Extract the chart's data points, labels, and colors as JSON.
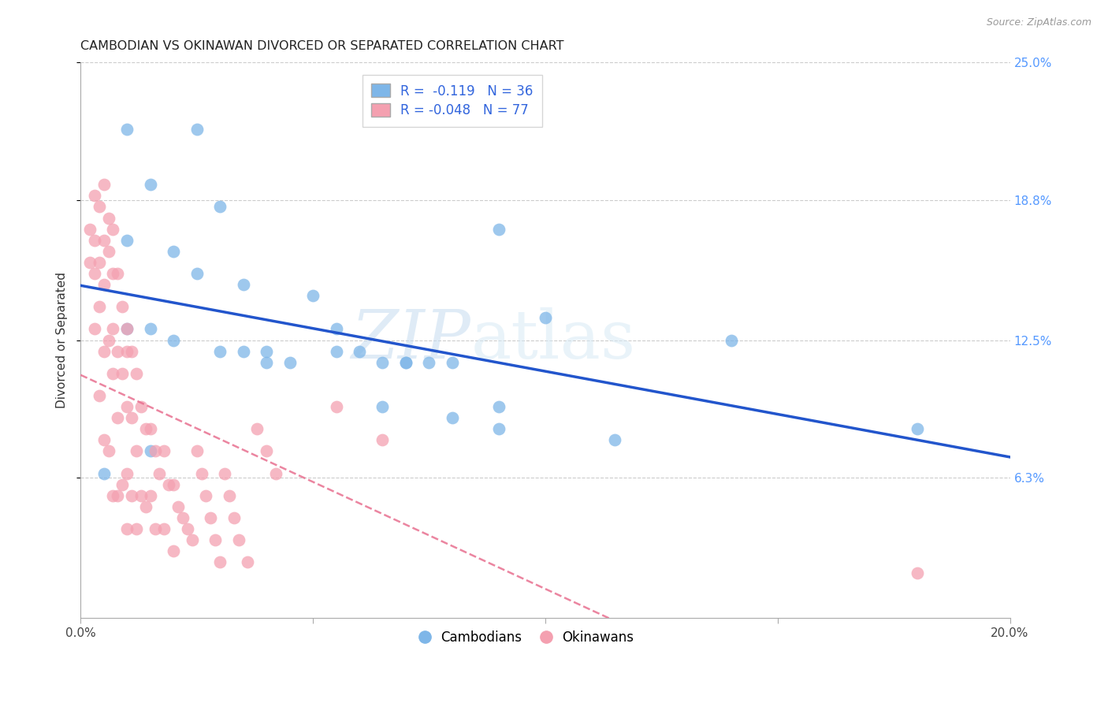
{
  "title": "CAMBODIAN VS OKINAWAN DIVORCED OR SEPARATED CORRELATION CHART",
  "source": "Source: ZipAtlas.com",
  "ylabel": "Divorced or Separated",
  "watermark_zip": "ZIP",
  "watermark_atlas": "atlas",
  "legend_r_cambodian": "R =  -0.119",
  "legend_n_cambodian": "N = 36",
  "legend_r_okinawan": "R = -0.048",
  "legend_n_okinawan": "N = 77",
  "legend_label_cambodian": "Cambodians",
  "legend_label_okinawan": "Okinawans",
  "xlim": [
    0.0,
    0.2
  ],
  "ylim": [
    0.0,
    0.25
  ],
  "yticks_right": [
    0.063,
    0.125,
    0.188,
    0.25
  ],
  "ytick_labels_right": [
    "6.3%",
    "12.5%",
    "18.8%",
    "25.0%"
  ],
  "color_cambodian": "#7EB6E8",
  "color_okinawan": "#F4A0B0",
  "line_color_cambodian": "#2255CC",
  "line_color_okinawan": "#E87090",
  "cambodian_x": [
    0.01,
    0.025,
    0.015,
    0.03,
    0.01,
    0.02,
    0.025,
    0.035,
    0.01,
    0.015,
    0.02,
    0.03,
    0.035,
    0.04,
    0.04,
    0.045,
    0.05,
    0.055,
    0.065,
    0.07,
    0.075,
    0.08,
    0.08,
    0.09,
    0.09,
    0.055,
    0.06,
    0.07,
    0.09,
    0.1,
    0.115,
    0.14,
    0.18,
    0.065,
    0.015,
    0.005
  ],
  "cambodian_y": [
    0.22,
    0.22,
    0.195,
    0.185,
    0.17,
    0.165,
    0.155,
    0.15,
    0.13,
    0.13,
    0.125,
    0.12,
    0.12,
    0.12,
    0.115,
    0.115,
    0.145,
    0.13,
    0.115,
    0.115,
    0.115,
    0.09,
    0.115,
    0.175,
    0.095,
    0.12,
    0.12,
    0.115,
    0.085,
    0.135,
    0.08,
    0.125,
    0.085,
    0.095,
    0.075,
    0.065
  ],
  "okinawan_x": [
    0.002,
    0.002,
    0.003,
    0.003,
    0.003,
    0.003,
    0.004,
    0.004,
    0.004,
    0.004,
    0.005,
    0.005,
    0.005,
    0.005,
    0.005,
    0.006,
    0.006,
    0.006,
    0.006,
    0.007,
    0.007,
    0.007,
    0.007,
    0.007,
    0.008,
    0.008,
    0.008,
    0.008,
    0.009,
    0.009,
    0.009,
    0.01,
    0.01,
    0.01,
    0.01,
    0.01,
    0.011,
    0.011,
    0.011,
    0.012,
    0.012,
    0.012,
    0.013,
    0.013,
    0.014,
    0.014,
    0.015,
    0.015,
    0.016,
    0.016,
    0.017,
    0.018,
    0.018,
    0.019,
    0.02,
    0.02,
    0.021,
    0.022,
    0.023,
    0.024,
    0.025,
    0.026,
    0.027,
    0.028,
    0.029,
    0.03,
    0.031,
    0.032,
    0.033,
    0.034,
    0.036,
    0.038,
    0.04,
    0.042,
    0.055,
    0.065,
    0.18
  ],
  "okinawan_y": [
    0.175,
    0.16,
    0.19,
    0.17,
    0.155,
    0.13,
    0.185,
    0.16,
    0.14,
    0.1,
    0.195,
    0.17,
    0.15,
    0.12,
    0.08,
    0.18,
    0.165,
    0.125,
    0.075,
    0.175,
    0.155,
    0.13,
    0.11,
    0.055,
    0.155,
    0.12,
    0.09,
    0.055,
    0.14,
    0.11,
    0.06,
    0.13,
    0.12,
    0.095,
    0.065,
    0.04,
    0.12,
    0.09,
    0.055,
    0.11,
    0.075,
    0.04,
    0.095,
    0.055,
    0.085,
    0.05,
    0.085,
    0.055,
    0.075,
    0.04,
    0.065,
    0.075,
    0.04,
    0.06,
    0.06,
    0.03,
    0.05,
    0.045,
    0.04,
    0.035,
    0.075,
    0.065,
    0.055,
    0.045,
    0.035,
    0.025,
    0.065,
    0.055,
    0.045,
    0.035,
    0.025,
    0.085,
    0.075,
    0.065,
    0.095,
    0.08,
    0.02
  ]
}
